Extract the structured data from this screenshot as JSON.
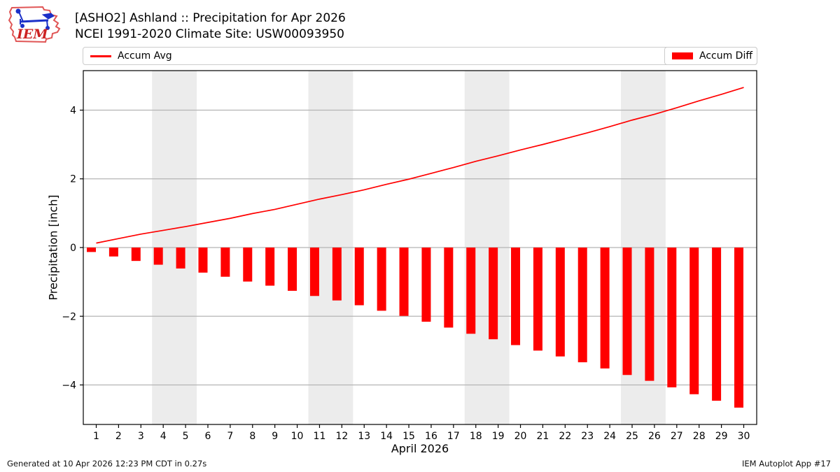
{
  "header": {
    "logo_text": "IEM",
    "title_line1": "[ASHO2] Ashland :: Precipitation for Apr 2026",
    "title_line2": "NCEI 1991-2020 Climate Site: USW00093950"
  },
  "legend": {
    "avg_label": "Accum Avg",
    "diff_label": "Accum Diff"
  },
  "footer": {
    "left": "Generated at 10 Apr 2026 12:23 PM CDT in 0.27s",
    "right": "IEM Autoplot App #17"
  },
  "chart_data": {
    "type": "line+bar",
    "title": "[ASHO2] Ashland :: Precipitation for Apr 2026",
    "subtitle": "NCEI 1991-2020 Climate Site: USW00093950",
    "xlabel": "April 2026",
    "ylabel": "Precipitation [inch]",
    "x": [
      1,
      2,
      3,
      4,
      5,
      6,
      7,
      8,
      9,
      10,
      11,
      12,
      13,
      14,
      15,
      16,
      17,
      18,
      19,
      20,
      21,
      22,
      23,
      24,
      25,
      26,
      27,
      28,
      29,
      30
    ],
    "series": [
      {
        "name": "Accum Avg",
        "type": "line",
        "color": "#ff0000",
        "values": [
          0.13,
          0.26,
          0.39,
          0.5,
          0.61,
          0.73,
          0.85,
          0.99,
          1.11,
          1.26,
          1.41,
          1.54,
          1.68,
          1.84,
          1.99,
          2.16,
          2.33,
          2.51,
          2.67,
          2.84,
          3.0,
          3.17,
          3.34,
          3.52,
          3.71,
          3.88,
          4.07,
          4.27,
          4.46,
          4.66
        ]
      },
      {
        "name": "Accum Diff",
        "type": "bar",
        "color": "#ff0000",
        "values": [
          -0.13,
          -0.26,
          -0.39,
          -0.5,
          -0.61,
          -0.73,
          -0.85,
          -0.99,
          -1.11,
          -1.26,
          -1.41,
          -1.54,
          -1.68,
          -1.84,
          -1.99,
          -2.16,
          -2.33,
          -2.51,
          -2.67,
          -2.84,
          -3.0,
          -3.17,
          -3.34,
          -3.52,
          -3.71,
          -3.88,
          -4.07,
          -4.27,
          -4.46,
          -4.66
        ]
      }
    ],
    "yticks": [
      4,
      2,
      0,
      -2,
      -4
    ],
    "ylim": [
      -5.15,
      5.15
    ],
    "xlim": [
      0.42,
      30.58
    ],
    "weekend_bands": [
      [
        3.5,
        5.5
      ],
      [
        10.5,
        12.5
      ],
      [
        17.5,
        19.5
      ],
      [
        24.5,
        26.5
      ]
    ],
    "band_color": "#ececec",
    "grid_color": "#b4b4b4",
    "spine_color": "#000000",
    "accent_red": "#ff0000",
    "grid": true,
    "legend_position": "top"
  }
}
